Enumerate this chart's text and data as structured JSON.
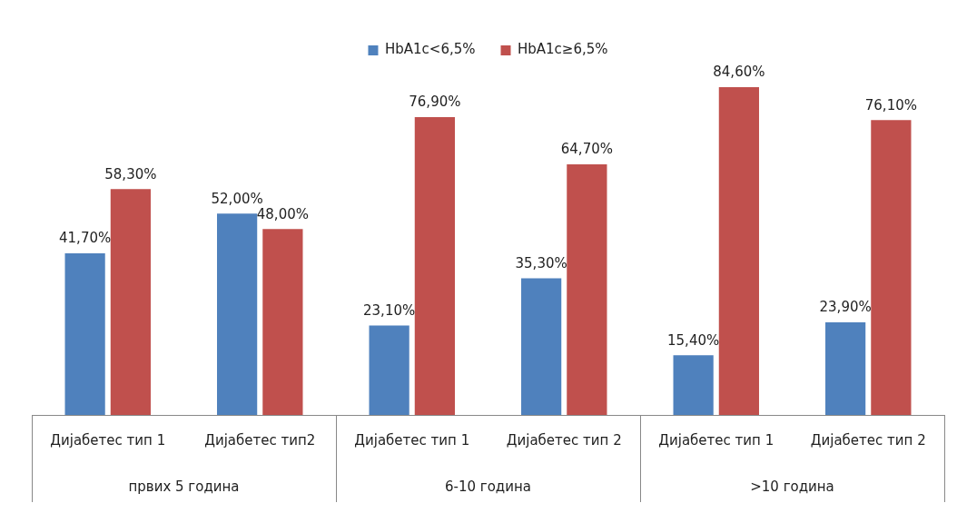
{
  "chart_data": {
    "type": "bar",
    "categories": [
      "Дијабетес тип 1",
      "Дијабетес тип2",
      "Дијабетес тип 1",
      "Дијабетес тип 2",
      "Дијабетес тип 1",
      "Дијабетес тип 2"
    ],
    "series": [
      {
        "name": "HbA1c<6,5%",
        "color": "#4f81bd",
        "values": [
          41.7,
          52.0,
          23.1,
          35.3,
          15.4,
          23.9
        ],
        "value_labels": [
          "41,70%",
          "52,00%",
          "23,10%",
          "35,30%",
          "15,40%",
          "23,90%"
        ]
      },
      {
        "name": "HbA1c≥6,5%",
        "color": "#c0504d",
        "values": [
          58.3,
          48.0,
          76.9,
          64.7,
          84.6,
          76.1
        ],
        "value_labels": [
          "58,30%",
          "48,00%",
          "76,90%",
          "64,70%",
          "84,60%",
          "76,10%"
        ]
      }
    ],
    "tick_labels": "x",
    "grid": false,
    "legend": "top",
    "annotations": [
      "првих 5 година",
      "6-10 година",
      ">10 година"
    ]
  }
}
